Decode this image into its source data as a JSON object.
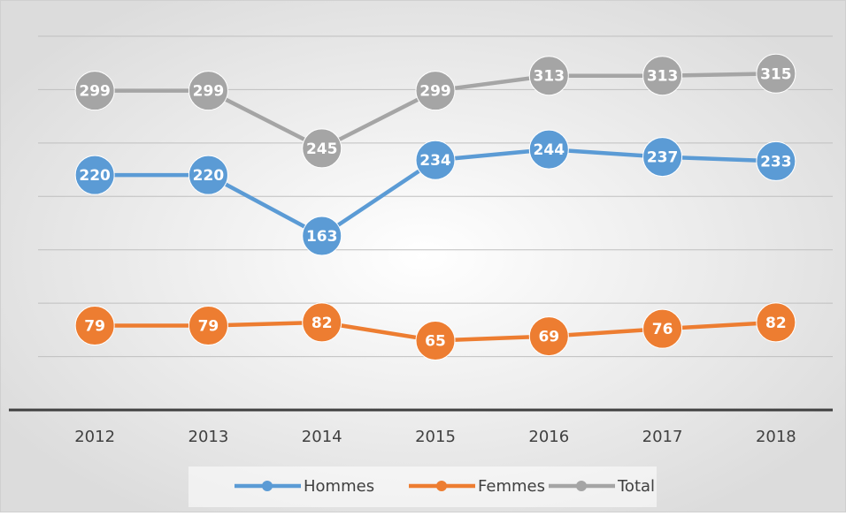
{
  "chart_data": {
    "type": "line",
    "categories": [
      "2012",
      "2013",
      "2014",
      "2015",
      "2016",
      "2017",
      "2018"
    ],
    "series": [
      {
        "name": "Hommes",
        "color": "#5b9bd5",
        "values": [
          220,
          220,
          163,
          234,
          244,
          237,
          233
        ]
      },
      {
        "name": "Femmes",
        "color": "#ed7d31",
        "values": [
          79,
          79,
          82,
          65,
          69,
          76,
          82
        ]
      },
      {
        "name": "Total",
        "color": "#a5a5a5",
        "values": [
          299,
          299,
          245,
          299,
          313,
          313,
          315
        ]
      }
    ],
    "ylim": [
      0,
      350
    ],
    "yticks": [
      0,
      50,
      100,
      150,
      200,
      250,
      300,
      350
    ],
    "grid": true,
    "legend": "bottom"
  }
}
